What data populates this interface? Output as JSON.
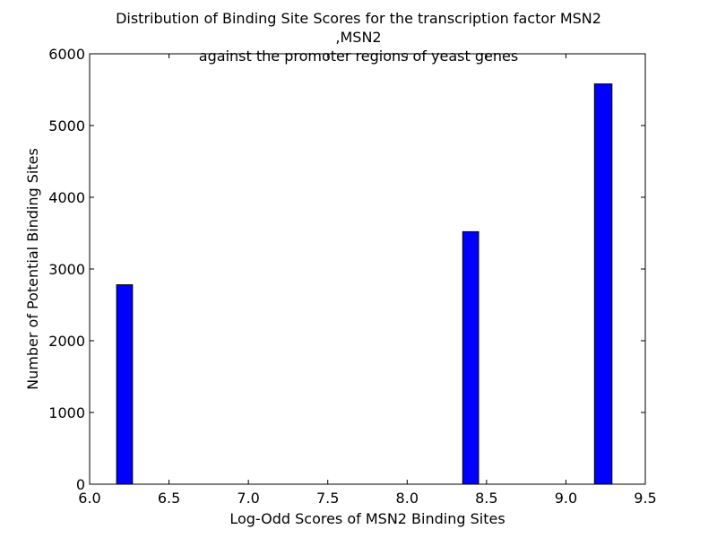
{
  "chart_data": {
    "type": "bar",
    "title_lines": [
      "Distribution of Binding Site Scores for the transcription factor MSN2",
      ",MSN2",
      "against the promoter regions of yeast genes"
    ],
    "xlabel": "Log-Odd Scores of MSN2 Binding Sites",
    "ylabel": "Number of Potential Binding Sites",
    "xlim": [
      6.0,
      9.5
    ],
    "ylim": [
      0,
      6000
    ],
    "xticks": [
      "6.0",
      "6.5",
      "7.0",
      "7.5",
      "8.0",
      "8.5",
      "9.0",
      "9.5"
    ],
    "yticks": [
      "0",
      "1000",
      "2000",
      "3000",
      "4000",
      "5000",
      "6000"
    ],
    "bar_color": "#0000ff",
    "bars": [
      {
        "x_start": 6.17,
        "x_end": 6.27,
        "value": 2780
      },
      {
        "x_start": 8.35,
        "x_end": 8.45,
        "value": 3520
      },
      {
        "x_start": 9.18,
        "x_end": 9.29,
        "value": 5580
      }
    ],
    "grid": false,
    "legend": "none"
  }
}
